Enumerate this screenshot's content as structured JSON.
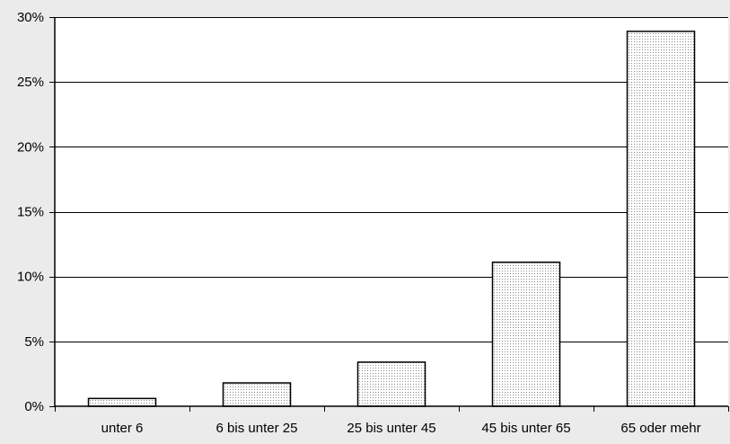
{
  "chart_data": {
    "type": "bar",
    "title": "",
    "xlabel": "",
    "ylabel": "",
    "categories": [
      "unter 6",
      "6 bis unter 25",
      "25 bis unter 45",
      "45 bis unter 65",
      "65 oder mehr"
    ],
    "values": [
      0.6,
      1.8,
      3.4,
      11.1,
      28.9
    ],
    "ylim": [
      0,
      30
    ],
    "yticks": [
      0,
      5,
      10,
      15,
      20,
      25,
      30
    ],
    "ytick_labels": [
      "0%",
      "5%",
      "10%",
      "15%",
      "20%",
      "25%",
      "30%"
    ],
    "grid": "horizontal",
    "legend": "none",
    "colors": {
      "background": "#ebebeb",
      "plot_background": "#ffffff",
      "bar_fill_base": "#ffffff",
      "bar_dot": "#8a8a8a",
      "bar_stroke": "#000000",
      "axis": "#000000",
      "grid": "#000000"
    }
  }
}
